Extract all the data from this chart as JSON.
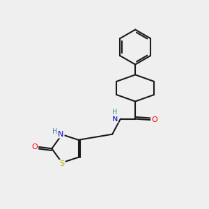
{
  "bg_color": "#efefef",
  "bond_color": "#1a1a1a",
  "atom_colors": {
    "N": "#0000cc",
    "O": "#ff0000",
    "S": "#bbbb00",
    "H": "#4a8888",
    "C": "#1a1a1a"
  },
  "figsize": [
    3.0,
    3.0
  ],
  "dpi": 100
}
